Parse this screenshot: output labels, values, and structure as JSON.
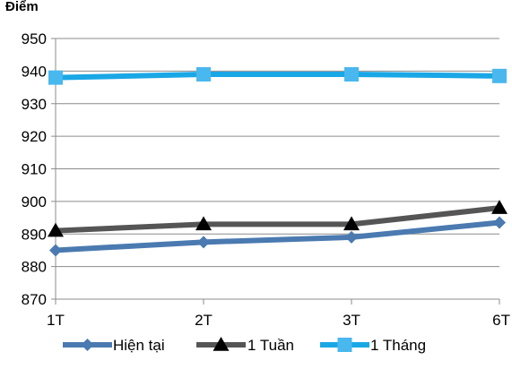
{
  "chart_data": {
    "type": "line",
    "title": "",
    "xlabel": "",
    "ylabel": "Điểm",
    "categories": [
      "1T",
      "2T",
      "3T",
      "6T"
    ],
    "ylim": [
      870,
      950
    ],
    "yticks": [
      870,
      880,
      890,
      900,
      910,
      920,
      930,
      940,
      950
    ],
    "grid": "horizontal",
    "legend_position": "bottom",
    "series": [
      {
        "name": "Hiện tại",
        "values": [
          885,
          887.5,
          889,
          893.5
        ],
        "color": "#4a7ab0",
        "marker": "diamond"
      },
      {
        "name": "1 Tuần",
        "values": [
          891,
          893,
          893,
          898
        ],
        "color": "#555555",
        "marker": "triangle",
        "marker_color": "#000000"
      },
      {
        "name": "1 Tháng",
        "values": [
          938,
          939,
          939,
          938.5
        ],
        "color": "#1aa7e6",
        "marker": "square",
        "marker_color": "#48b8ee"
      }
    ]
  }
}
